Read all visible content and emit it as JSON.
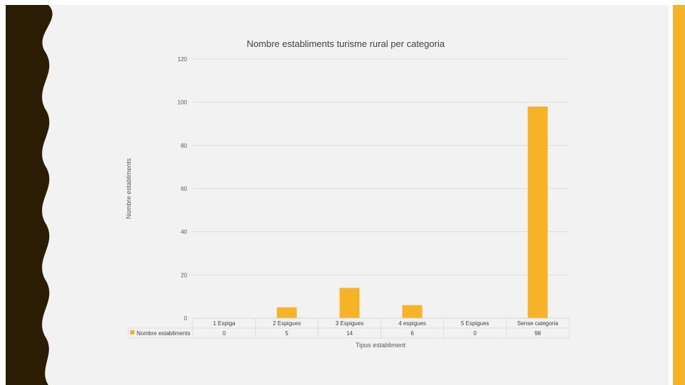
{
  "colors": {
    "accent": "#f6b325",
    "dark": "#2b1d04",
    "background": "#f2f2f2"
  },
  "chart_data": {
    "type": "bar",
    "title": "Nombre establiments turisme rural per categoria",
    "xlabel": "Tipus establiment",
    "ylabel": "Nombre establiments",
    "categories": [
      "1 Espiga",
      "2 Espigues",
      "3 Espigues",
      "4 espigues",
      "5 Espigues",
      "Sense categoria"
    ],
    "series": [
      {
        "name": "Nombre establiments",
        "values": [
          0,
          5,
          14,
          6,
          0,
          98
        ]
      }
    ],
    "ylim": [
      0,
      120
    ],
    "yticks": [
      0,
      20,
      40,
      60,
      80,
      100,
      120
    ],
    "grid": true,
    "legend": "data-table",
    "data_table": true
  }
}
